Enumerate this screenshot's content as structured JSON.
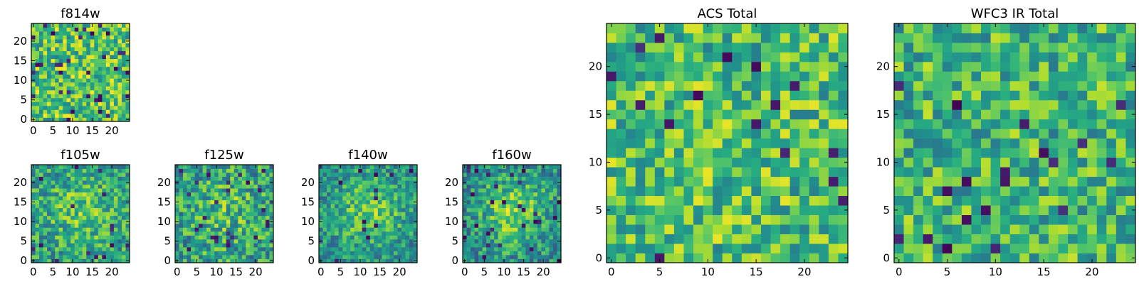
{
  "figure": {
    "description_colormap": "viridis",
    "colors": {
      "low": "#440154",
      "mid": "#21918c",
      "high": "#fde725"
    }
  },
  "chart_data": [
    {
      "id": "f814w",
      "type": "heatmap",
      "title": "f814w",
      "grid": [
        25,
        25
      ],
      "xlim": [
        0,
        24
      ],
      "ylim": [
        0,
        24
      ],
      "xticks": [
        "0",
        "5",
        "10",
        "15",
        "20"
      ],
      "xtick_values": [
        0,
        5,
        10,
        15,
        20
      ],
      "yticks": [
        "0",
        "5",
        "10",
        "15",
        "20"
      ],
      "ytick_values": [
        0,
        5,
        10,
        15,
        20
      ],
      "seed": 11,
      "value_mean": 0.72,
      "value_spread": 0.28,
      "center_boost": 0.0,
      "dark_fraction": 0.05
    },
    {
      "id": "f105w",
      "type": "heatmap",
      "title": "f105w",
      "grid": [
        25,
        25
      ],
      "xlim": [
        0,
        24
      ],
      "ylim": [
        0,
        24
      ],
      "xticks": [
        "0",
        "5",
        "10",
        "15",
        "20"
      ],
      "xtick_values": [
        0,
        5,
        10,
        15,
        20
      ],
      "yticks": [
        "0",
        "5",
        "10",
        "15",
        "20"
      ],
      "ytick_values": [
        0,
        5,
        10,
        15,
        20
      ],
      "seed": 23,
      "value_mean": 0.62,
      "value_spread": 0.25,
      "center_boost": 0.18,
      "dark_fraction": 0.03
    },
    {
      "id": "f125w",
      "type": "heatmap",
      "title": "f125w",
      "grid": [
        25,
        25
      ],
      "xlim": [
        0,
        24
      ],
      "ylim": [
        0,
        24
      ],
      "xticks": [
        "0",
        "5",
        "10",
        "15",
        "20"
      ],
      "xtick_values": [
        0,
        5,
        10,
        15,
        20
      ],
      "yticks": [
        "0",
        "5",
        "10",
        "15",
        "20"
      ],
      "ytick_values": [
        0,
        5,
        10,
        15,
        20
      ],
      "seed": 37,
      "value_mean": 0.6,
      "value_spread": 0.28,
      "center_boost": 0.15,
      "dark_fraction": 0.03
    },
    {
      "id": "f140w",
      "type": "heatmap",
      "title": "f140w",
      "grid": [
        25,
        25
      ],
      "xlim": [
        0,
        24
      ],
      "ylim": [
        0,
        24
      ],
      "xticks": [
        "0",
        "5",
        "10",
        "15",
        "20"
      ],
      "xtick_values": [
        0,
        5,
        10,
        15,
        20
      ],
      "yticks": [
        "0",
        "5",
        "10",
        "15",
        "20"
      ],
      "ytick_values": [
        0,
        5,
        10,
        15,
        20
      ],
      "seed": 41,
      "value_mean": 0.58,
      "value_spread": 0.22,
      "center_boost": 0.3,
      "dark_fraction": 0.02
    },
    {
      "id": "f160w",
      "type": "heatmap",
      "title": "f160w",
      "grid": [
        25,
        25
      ],
      "xlim": [
        0,
        24
      ],
      "ylim": [
        0,
        24
      ],
      "xticks": [
        "0",
        "5",
        "10",
        "15",
        "20"
      ],
      "xtick_values": [
        0,
        5,
        10,
        15,
        20
      ],
      "yticks": [
        "0",
        "5",
        "10",
        "15",
        "20"
      ],
      "ytick_values": [
        0,
        5,
        10,
        15,
        20
      ],
      "seed": 53,
      "value_mean": 0.58,
      "value_spread": 0.24,
      "center_boost": 0.32,
      "dark_fraction": 0.04
    },
    {
      "id": "acs-total",
      "type": "heatmap",
      "title": "ACS Total",
      "grid": [
        25,
        25
      ],
      "xlim": [
        0,
        24
      ],
      "ylim": [
        0,
        24
      ],
      "xticks": [
        "0",
        "5",
        "10",
        "15",
        "20"
      ],
      "xtick_values": [
        0,
        5,
        10,
        15,
        20
      ],
      "yticks": [
        "0",
        "5",
        "10",
        "15",
        "20"
      ],
      "ytick_values": [
        0,
        5,
        10,
        15,
        20
      ],
      "seed": 67,
      "value_mean": 0.7,
      "value_spread": 0.27,
      "center_boost": 0.0,
      "dark_fraction": 0.025
    },
    {
      "id": "wfc3-ir-total",
      "type": "heatmap",
      "title": "WFC3 IR Total",
      "grid": [
        25,
        25
      ],
      "xlim": [
        0,
        24
      ],
      "ylim": [
        0,
        24
      ],
      "xticks": [
        "0",
        "5",
        "10",
        "15",
        "20"
      ],
      "xtick_values": [
        0,
        5,
        10,
        15,
        20
      ],
      "yticks": [
        "0",
        "5",
        "10",
        "15",
        "20"
      ],
      "ytick_values": [
        0,
        5,
        10,
        15,
        20
      ],
      "seed": 79,
      "value_mean": 0.66,
      "value_spread": 0.26,
      "center_boost": 0.0,
      "dark_fraction": 0.025
    }
  ]
}
